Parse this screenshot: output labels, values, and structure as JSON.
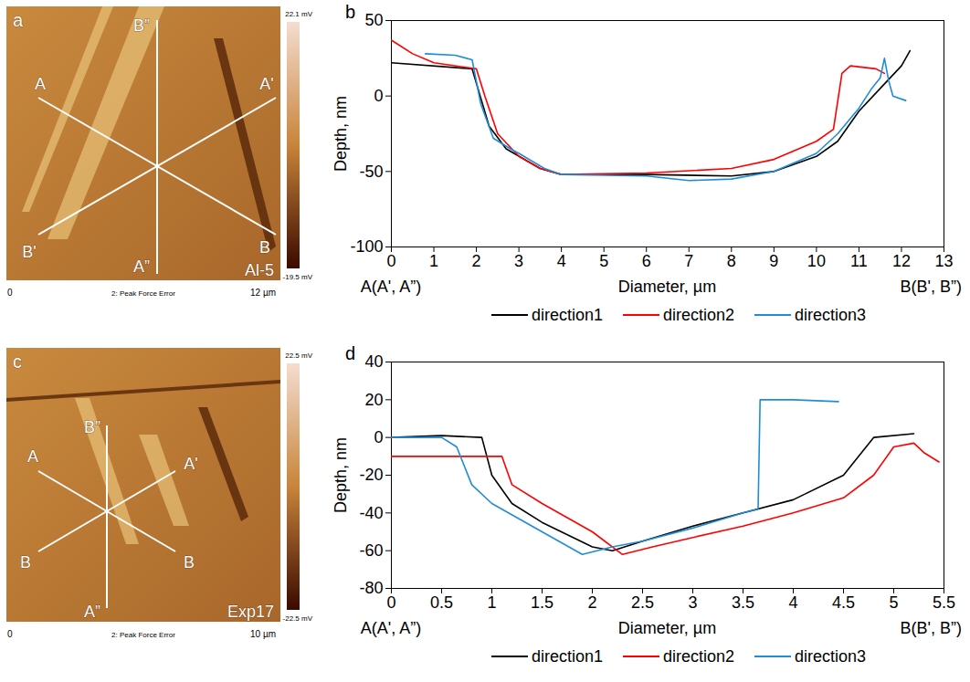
{
  "images": [
    {
      "letter": "a",
      "sample": "Al-5",
      "line_labels": [
        "A",
        "B",
        "A'",
        "B'",
        "A”",
        "B”"
      ],
      "colorbar_labels": [
        "22.1 mV",
        "-19.5 mV"
      ],
      "scale_labels": [
        "0",
        "2: Peak Force Error",
        "12 µm"
      ]
    },
    {
      "letter": "c",
      "sample": "Exp17",
      "line_labels": [
        "A",
        "B",
        "A'",
        "B",
        "A”",
        "B”"
      ],
      "colorbar_labels": [
        "22.5 mV",
        "-22.5 mV"
      ],
      "scale_labels": [
        "0",
        "2: Peak Force Error",
        "10 µm"
      ]
    }
  ],
  "chart_data": [
    {
      "type": "line",
      "letter": "b",
      "x_label": "Diameter, µm",
      "y_label": "Depth, nm",
      "x_end_labels": [
        "A(A', A”)",
        "B(B', B”)"
      ],
      "xlim": [
        0,
        13
      ],
      "xticks": [
        0,
        1,
        2,
        3,
        4,
        5,
        6,
        7,
        8,
        9,
        10,
        11,
        12,
        13
      ],
      "ylim": [
        -100,
        50
      ],
      "yticks": [
        -100,
        -50,
        0,
        50
      ],
      "legend": "bottom",
      "series": [
        {
          "name": "direction1",
          "color": "#000000",
          "x": [
            0,
            1.9,
            2.3,
            2.7,
            3.5,
            4,
            6,
            8,
            9,
            10,
            10.5,
            11,
            11.5,
            12,
            12.2
          ],
          "values": [
            22,
            18,
            -20,
            -35,
            -48,
            -52,
            -52,
            -53,
            -50,
            -40,
            -30,
            -10,
            5,
            20,
            30
          ]
        },
        {
          "name": "direction2",
          "color": "#ff0000",
          "x": [
            0,
            0.5,
            1,
            2,
            2.2,
            2.5,
            3,
            3.5,
            4,
            6,
            8,
            9,
            10,
            10.4,
            10.6,
            10.8,
            11.4,
            11.6
          ],
          "values": [
            37,
            28,
            22,
            18,
            0,
            -25,
            -40,
            -48,
            -52,
            -51,
            -48,
            -42,
            -30,
            -22,
            15,
            20,
            18,
            15
          ]
        },
        {
          "name": "direction3",
          "color": "#1f8dd6",
          "x": [
            0.8,
            1.5,
            1.9,
            2.1,
            2.4,
            2.8,
            3,
            3.6,
            4,
            6,
            7,
            8,
            9,
            10,
            10.5,
            11,
            11.3,
            11.5,
            11.6,
            11.7,
            11.8,
            12.1
          ],
          "values": [
            28,
            27,
            24,
            -5,
            -28,
            -35,
            -38,
            -48,
            -52,
            -53,
            -56,
            -55,
            -50,
            -38,
            -25,
            -8,
            5,
            12,
            25,
            10,
            0,
            -3
          ]
        }
      ]
    },
    {
      "type": "line",
      "letter": "d",
      "x_label": "Diameter, µm",
      "y_label": "Depth, nm",
      "x_end_labels": [
        "A(A', A”)",
        "B(B', B”)"
      ],
      "xlim": [
        0,
        5.5
      ],
      "xticks": [
        0,
        0.5,
        1,
        1.5,
        2,
        2.5,
        3,
        3.5,
        4,
        4.5,
        5,
        5.5
      ],
      "ylim": [
        -80,
        40
      ],
      "yticks": [
        -80,
        -60,
        -40,
        -20,
        0,
        20,
        40
      ],
      "legend": "bottom",
      "series": [
        {
          "name": "direction1",
          "color": "#000000",
          "x": [
            0,
            0.5,
            0.9,
            1.0,
            1.2,
            1.5,
            2,
            2.2,
            2.5,
            3,
            3.5,
            4,
            4.5,
            4.8,
            5.2
          ],
          "values": [
            0,
            1,
            0,
            -20,
            -35,
            -45,
            -58,
            -60,
            -55,
            -47,
            -40,
            -33,
            -20,
            0,
            2
          ]
        },
        {
          "name": "direction2",
          "color": "#ff0000",
          "x": [
            0,
            1.1,
            1.2,
            1.5,
            2,
            2.3,
            2.6,
            3,
            3.5,
            4,
            4.5,
            4.8,
            5,
            5.2,
            5.3,
            5.45
          ],
          "values": [
            -10,
            -10,
            -25,
            -35,
            -50,
            -62,
            -58,
            -53,
            -47,
            -40,
            -32,
            -20,
            -5,
            -3,
            -8,
            -13
          ]
        },
        {
          "name": "direction3",
          "color": "#1f8dd6",
          "x": [
            0,
            0.5,
            0.65,
            0.8,
            1,
            1.5,
            1.9,
            2.2,
            2.5,
            3,
            3.5,
            3.65,
            3.67,
            4,
            4.45
          ],
          "values": [
            0,
            0,
            -5,
            -25,
            -35,
            -50,
            -62,
            -58,
            -55,
            -48,
            -40,
            -38,
            20,
            20,
            19
          ]
        }
      ]
    }
  ]
}
